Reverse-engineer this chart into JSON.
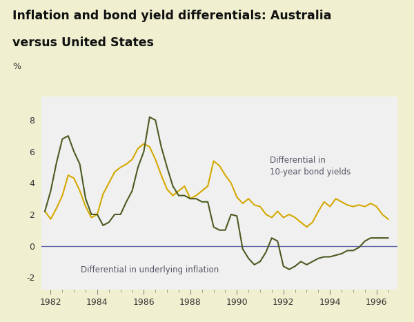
{
  "title_line1": "Inflation and bond yield differentials: Australia",
  "title_line2": "versus United States",
  "ylabel": "%",
  "title_bg_color": "#f0f0d0",
  "plot_bg_color": "#f0f0f0",
  "fig_bg_color": "#f0f0d0",
  "ylim": [
    -2.8,
    9.5
  ],
  "yticks": [
    -2,
    0,
    2,
    4,
    6,
    8
  ],
  "xlim": [
    1981.6,
    1996.9
  ],
  "xticks": [
    1982,
    1984,
    1986,
    1988,
    1990,
    1992,
    1994,
    1996
  ],
  "bond_color": "#d4a800",
  "inflation_color": "#4a5a20",
  "zero_line_color": "#6666aa",
  "annotation_bond": "Differential in\n10-year bond yields",
  "annotation_inflation": "Differential in underlying inflation",
  "bond_yields_x": [
    1981.75,
    1982.0,
    1982.25,
    1982.5,
    1982.75,
    1983.0,
    1983.25,
    1983.5,
    1983.75,
    1984.0,
    1984.25,
    1984.5,
    1984.75,
    1985.0,
    1985.25,
    1985.5,
    1985.75,
    1986.0,
    1986.25,
    1986.5,
    1986.75,
    1987.0,
    1987.25,
    1987.5,
    1987.75,
    1988.0,
    1988.25,
    1988.5,
    1988.75,
    1989.0,
    1989.25,
    1989.5,
    1989.75,
    1990.0,
    1990.25,
    1990.5,
    1990.75,
    1991.0,
    1991.25,
    1991.5,
    1991.75,
    1992.0,
    1992.25,
    1992.5,
    1992.75,
    1993.0,
    1993.25,
    1993.5,
    1993.75,
    1994.0,
    1994.25,
    1994.5,
    1994.75,
    1995.0,
    1995.25,
    1995.5,
    1995.75,
    1996.0,
    1996.25,
    1996.5
  ],
  "bond_yields_y": [
    2.2,
    1.7,
    2.4,
    3.2,
    4.5,
    4.3,
    3.5,
    2.5,
    1.8,
    2.0,
    3.3,
    4.0,
    4.7,
    5.0,
    5.2,
    5.5,
    6.2,
    6.5,
    6.3,
    5.5,
    4.5,
    3.6,
    3.2,
    3.5,
    3.8,
    3.0,
    3.2,
    3.5,
    3.8,
    5.4,
    5.1,
    4.5,
    4.0,
    3.1,
    2.7,
    3.0,
    2.6,
    2.5,
    2.0,
    1.8,
    2.2,
    1.8,
    2.0,
    1.8,
    1.5,
    1.2,
    1.5,
    2.2,
    2.8,
    2.5,
    3.0,
    2.8,
    2.6,
    2.5,
    2.6,
    2.5,
    2.7,
    2.5,
    2.0,
    1.7
  ],
  "inflation_x": [
    1981.75,
    1982.0,
    1982.25,
    1982.5,
    1982.75,
    1983.0,
    1983.25,
    1983.5,
    1983.75,
    1984.0,
    1984.25,
    1984.5,
    1984.75,
    1985.0,
    1985.25,
    1985.5,
    1985.75,
    1986.0,
    1986.25,
    1986.5,
    1986.75,
    1987.0,
    1987.25,
    1987.5,
    1987.75,
    1988.0,
    1988.25,
    1988.5,
    1988.75,
    1989.0,
    1989.25,
    1989.5,
    1989.75,
    1990.0,
    1990.25,
    1990.5,
    1990.75,
    1991.0,
    1991.25,
    1991.5,
    1991.75,
    1992.0,
    1992.25,
    1992.5,
    1992.75,
    1993.0,
    1993.25,
    1993.5,
    1993.75,
    1994.0,
    1994.25,
    1994.5,
    1994.75,
    1995.0,
    1995.25,
    1995.5,
    1995.75,
    1996.0,
    1996.25,
    1996.5
  ],
  "inflation_y": [
    2.2,
    3.5,
    5.3,
    6.8,
    7.0,
    6.0,
    5.2,
    3.0,
    2.0,
    2.0,
    1.3,
    1.5,
    2.0,
    2.0,
    2.8,
    3.5,
    5.0,
    6.0,
    8.2,
    8.0,
    6.3,
    5.0,
    3.8,
    3.2,
    3.2,
    3.0,
    3.0,
    2.8,
    2.8,
    1.2,
    1.0,
    1.0,
    2.0,
    1.9,
    -0.2,
    -0.8,
    -1.2,
    -1.0,
    -0.4,
    0.5,
    0.3,
    -1.3,
    -1.5,
    -1.3,
    -1.0,
    -1.2,
    -1.0,
    -0.8,
    -0.7,
    -0.7,
    -0.6,
    -0.5,
    -0.3,
    -0.3,
    -0.1,
    0.3,
    0.5,
    0.5,
    0.5,
    0.5
  ]
}
